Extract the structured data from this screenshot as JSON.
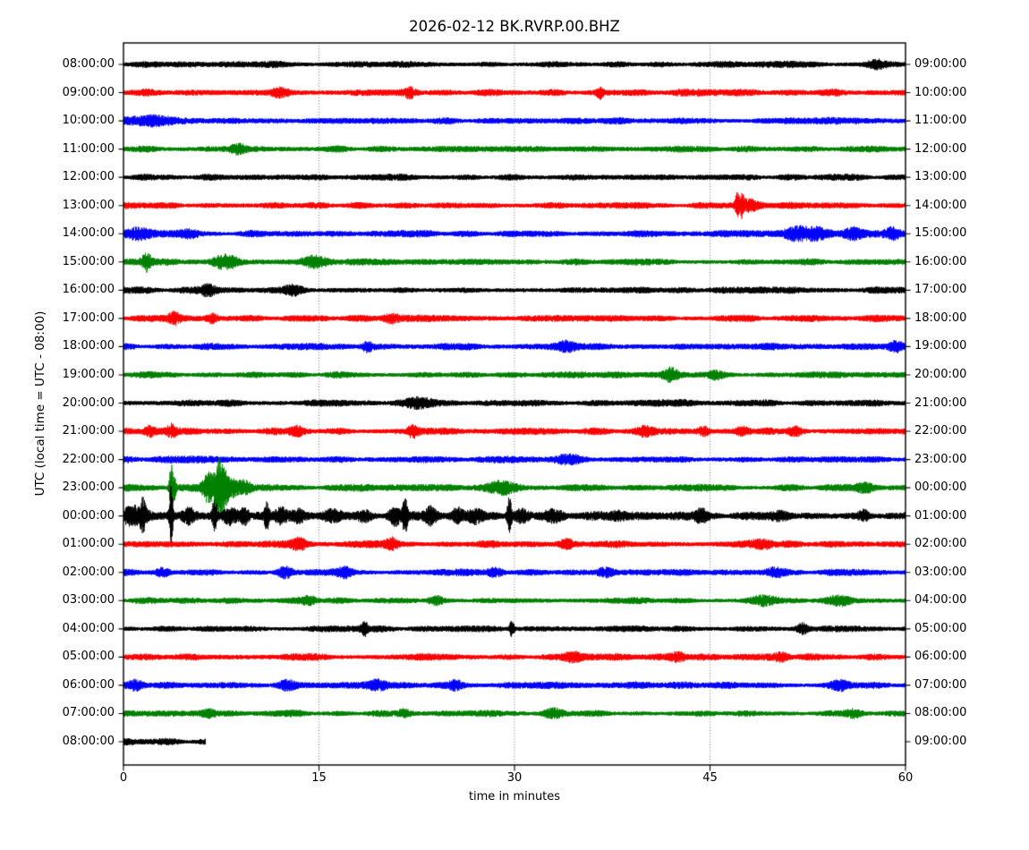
{
  "chart_data": {
    "type": "line",
    "variant": "helicorder-seismogram",
    "title": "2026-02-12 BK.RVRP.00.BHZ",
    "xlabel": "time in minutes",
    "ylabel": "UTC (local time = UTC - 08:00)",
    "xlim": [
      0,
      60
    ],
    "x_ticks": [
      0,
      15,
      30,
      45,
      60
    ],
    "grid_minutes": [
      15,
      30,
      45
    ],
    "grid_on": true,
    "minutes_per_row": 60,
    "trace_colors": {
      "black": "#000000",
      "red": "#ff0000",
      "blue": "#0000ff",
      "green": "#008000"
    },
    "rows": [
      {
        "utc_left": "08:00:00",
        "local_right": "09:00:00",
        "color": "black",
        "base": 1.0,
        "extent": 60,
        "seed": 101,
        "events": [
          [
            57.8,
            0.5,
            1.5
          ]
        ]
      },
      {
        "utc_left": "09:00:00",
        "local_right": "10:00:00",
        "color": "red",
        "base": 1.05,
        "extent": 60,
        "seed": 202,
        "events": [
          [
            12,
            0.5,
            1.3
          ],
          [
            22,
            0.3,
            1.4
          ],
          [
            36.6,
            0.2,
            1.6
          ]
        ]
      },
      {
        "utc_left": "10:00:00",
        "local_right": "11:00:00",
        "color": "blue",
        "base": 1.0,
        "extent": 60,
        "seed": 303,
        "events": [
          [
            2.5,
            1.2,
            1.25
          ]
        ]
      },
      {
        "utc_left": "11:00:00",
        "local_right": "12:00:00",
        "color": "green",
        "base": 0.95,
        "extent": 60,
        "seed": 404,
        "events": [
          [
            8.8,
            0.4,
            1.3
          ]
        ]
      },
      {
        "utc_left": "12:00:00",
        "local_right": "13:00:00",
        "color": "black",
        "base": 0.95,
        "extent": 60,
        "seed": 505,
        "events": []
      },
      {
        "utc_left": "13:00:00",
        "local_right": "14:00:00",
        "color": "red",
        "base": 0.95,
        "extent": 60,
        "seed": 606,
        "events": [
          [
            47.1,
            0.1,
            4.2
          ],
          [
            47.45,
            0.12,
            2.8
          ],
          [
            48,
            0.6,
            1.5
          ]
        ]
      },
      {
        "utc_left": "14:00:00",
        "local_right": "15:00:00",
        "color": "blue",
        "base": 1.0,
        "extent": 60,
        "seed": 707,
        "events": [
          [
            1,
            0.8,
            1.5
          ],
          [
            5,
            0.6,
            1.3
          ],
          [
            51.7,
            0.7,
            2.2
          ],
          [
            53.2,
            0.6,
            2.0
          ],
          [
            56,
            0.5,
            1.4
          ],
          [
            59,
            0.4,
            1.7
          ]
        ]
      },
      {
        "utc_left": "15:00:00",
        "local_right": "16:00:00",
        "color": "green",
        "base": 1.0,
        "extent": 60,
        "seed": 808,
        "events": [
          [
            1.8,
            0.25,
            2.6
          ],
          [
            7.8,
            0.7,
            2.4
          ],
          [
            14.6,
            0.7,
            1.4
          ]
        ]
      },
      {
        "utc_left": "16:00:00",
        "local_right": "17:00:00",
        "color": "black",
        "base": 0.95,
        "extent": 60,
        "seed": 909,
        "events": [
          [
            6.5,
            0.4,
            1.5
          ],
          [
            13,
            0.5,
            1.4
          ]
        ]
      },
      {
        "utc_left": "17:00:00",
        "local_right": "18:00:00",
        "color": "red",
        "base": 1.0,
        "extent": 60,
        "seed": 110,
        "events": [
          [
            3.9,
            0.3,
            1.6
          ],
          [
            6.8,
            0.3,
            1.4
          ],
          [
            20.5,
            0.4,
            1.3
          ]
        ]
      },
      {
        "utc_left": "18:00:00",
        "local_right": "19:00:00",
        "color": "blue",
        "base": 1.0,
        "extent": 60,
        "seed": 120,
        "events": [
          [
            18.7,
            0.3,
            1.5
          ],
          [
            34,
            0.5,
            1.3
          ],
          [
            59.3,
            0.4,
            2.0
          ]
        ]
      },
      {
        "utc_left": "19:00:00",
        "local_right": "20:00:00",
        "color": "green",
        "base": 0.95,
        "extent": 60,
        "seed": 130,
        "events": [
          [
            42,
            0.4,
            2.1
          ],
          [
            45.5,
            0.4,
            1.3
          ]
        ]
      },
      {
        "utc_left": "20:00:00",
        "local_right": "21:00:00",
        "color": "black",
        "base": 1.0,
        "extent": 60,
        "seed": 140,
        "events": [
          [
            22.5,
            0.8,
            1.3
          ]
        ]
      },
      {
        "utc_left": "21:00:00",
        "local_right": "22:00:00",
        "color": "red",
        "base": 1.05,
        "extent": 60,
        "seed": 150,
        "events": [
          [
            2,
            0.3,
            1.5
          ],
          [
            3.7,
            0.25,
            1.7
          ],
          [
            13.3,
            0.4,
            1.4
          ],
          [
            22.2,
            0.3,
            1.8
          ],
          [
            40,
            0.4,
            1.4
          ],
          [
            44.5,
            0.3,
            1.4
          ],
          [
            47.5,
            0.4,
            1.5
          ],
          [
            51.5,
            0.4,
            1.5
          ]
        ]
      },
      {
        "utc_left": "22:00:00",
        "local_right": "23:00:00",
        "color": "blue",
        "base": 1.0,
        "extent": 60,
        "seed": 160,
        "events": [
          [
            34,
            0.8,
            1.25
          ]
        ]
      },
      {
        "utc_left": "23:00:00",
        "local_right": "00:00:00",
        "color": "green",
        "base": 1.05,
        "extent": 60,
        "seed": 170,
        "events": [
          [
            3.65,
            0.1,
            8.0
          ],
          [
            3.9,
            0.1,
            4.0
          ],
          [
            6.5,
            0.3,
            4.5
          ],
          [
            7.3,
            0.25,
            9.5
          ],
          [
            7.8,
            0.2,
            5.0
          ],
          [
            8.3,
            0.3,
            2.5
          ],
          [
            9.2,
            0.4,
            1.8
          ],
          [
            29,
            0.7,
            1.6
          ],
          [
            57,
            0.5,
            1.4
          ]
        ]
      },
      {
        "utc_left": "00:00:00",
        "local_right": "01:00:00",
        "color": "black",
        "base": 1.3,
        "extent": 60,
        "seed": 180,
        "events": [
          [
            0.9,
            0.7,
            2.6
          ],
          [
            1.5,
            0.15,
            3.8
          ],
          [
            3.65,
            0.1,
            11.0
          ],
          [
            5.0,
            0.35,
            2.2
          ],
          [
            7.0,
            0.13,
            6.5
          ],
          [
            8.2,
            0.4,
            2.4
          ],
          [
            9.3,
            0.2,
            2.8
          ],
          [
            11.0,
            0.13,
            4.2
          ],
          [
            12.1,
            0.3,
            2.4
          ],
          [
            13.4,
            0.4,
            1.8
          ],
          [
            16,
            0.5,
            1.6
          ],
          [
            18.5,
            0.4,
            1.5
          ],
          [
            20.8,
            0.3,
            2.6
          ],
          [
            21.6,
            0.13,
            5.5
          ],
          [
            23.6,
            0.3,
            2.4
          ],
          [
            25.6,
            0.3,
            2.2
          ],
          [
            27,
            0.4,
            1.8
          ],
          [
            29.6,
            0.11,
            7.0
          ],
          [
            30.5,
            0.4,
            2.0
          ],
          [
            33,
            0.5,
            1.3
          ],
          [
            38,
            0.5,
            1.2
          ],
          [
            44.3,
            0.3,
            1.5
          ],
          [
            50.5,
            0.5,
            1.3
          ],
          [
            56.8,
            0.3,
            1.6
          ]
        ]
      },
      {
        "utc_left": "01:00:00",
        "local_right": "02:00:00",
        "color": "red",
        "base": 1.05,
        "extent": 60,
        "seed": 190,
        "events": [
          [
            13.5,
            0.4,
            1.4
          ],
          [
            20.6,
            0.3,
            1.7
          ],
          [
            34,
            0.4,
            1.5
          ],
          [
            49,
            0.5,
            1.3
          ]
        ]
      },
      {
        "utc_left": "02:00:00",
        "local_right": "03:00:00",
        "color": "blue",
        "base": 1.0,
        "extent": 60,
        "seed": 210,
        "events": [
          [
            3,
            0.4,
            1.4
          ],
          [
            12.4,
            0.4,
            1.7
          ],
          [
            17,
            0.4,
            1.3
          ],
          [
            28.5,
            0.4,
            1.3
          ],
          [
            37,
            0.5,
            1.3
          ],
          [
            50,
            0.5,
            1.3
          ]
        ]
      },
      {
        "utc_left": "03:00:00",
        "local_right": "04:00:00",
        "color": "green",
        "base": 0.95,
        "extent": 60,
        "seed": 220,
        "events": [
          [
            14.3,
            0.4,
            1.4
          ],
          [
            24,
            0.4,
            1.4
          ],
          [
            49,
            0.7,
            1.3
          ],
          [
            55,
            0.6,
            1.3
          ]
        ]
      },
      {
        "utc_left": "04:00:00",
        "local_right": "05:00:00",
        "color": "black",
        "base": 0.95,
        "extent": 60,
        "seed": 230,
        "events": [
          [
            18.5,
            0.2,
            1.9
          ],
          [
            29.8,
            0.12,
            2.8
          ],
          [
            52.1,
            0.3,
            1.6
          ]
        ]
      },
      {
        "utc_left": "05:00:00",
        "local_right": "06:00:00",
        "color": "red",
        "base": 1.0,
        "extent": 60,
        "seed": 240,
        "events": [
          [
            34.5,
            0.5,
            1.3
          ],
          [
            42.5,
            0.4,
            1.3
          ],
          [
            50.5,
            0.4,
            1.3
          ]
        ]
      },
      {
        "utc_left": "06:00:00",
        "local_right": "07:00:00",
        "color": "blue",
        "base": 1.0,
        "extent": 60,
        "seed": 250,
        "events": [
          [
            1,
            0.4,
            1.5
          ],
          [
            12.5,
            0.5,
            1.4
          ],
          [
            19.5,
            0.5,
            1.4
          ],
          [
            25.5,
            0.4,
            1.3
          ],
          [
            55,
            0.5,
            1.4
          ]
        ]
      },
      {
        "utc_left": "07:00:00",
        "local_right": "08:00:00",
        "color": "green",
        "base": 0.95,
        "extent": 60,
        "seed": 260,
        "events": [
          [
            6.5,
            0.4,
            1.4
          ],
          [
            21.5,
            0.4,
            1.3
          ],
          [
            33,
            0.5,
            1.3
          ],
          [
            56,
            0.5,
            1.3
          ]
        ]
      },
      {
        "utc_left": "08:00:00",
        "local_right": "09:00:00",
        "color": "black",
        "base": 1.05,
        "extent": 6.3,
        "seed": 270,
        "events": []
      }
    ]
  }
}
